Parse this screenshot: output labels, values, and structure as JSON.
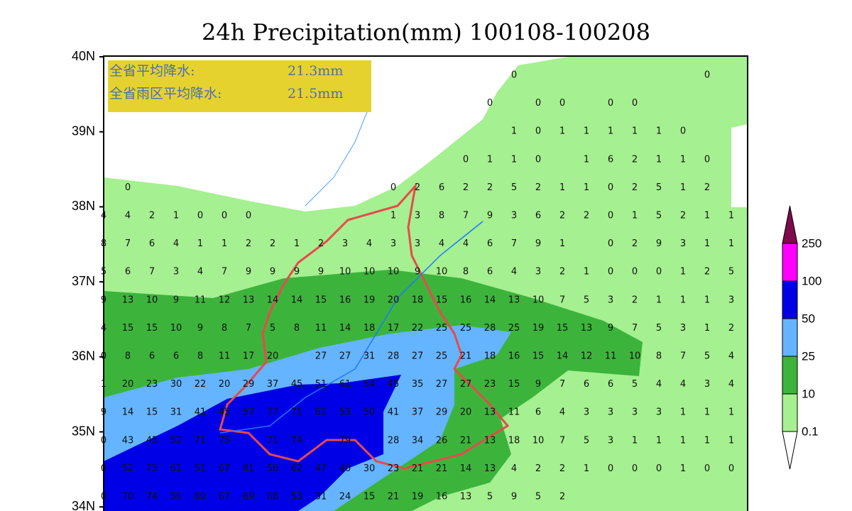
{
  "title": "24h Precipitation(mm) 100108-100208",
  "info_box": {
    "rows": [
      {
        "label": "全省平均降水:",
        "value": "21.3mm"
      },
      {
        "label": "全省雨区平均降水:",
        "value": "21.5mm"
      }
    ]
  },
  "lat_labels": [
    "40N",
    "39N",
    "38N",
    "37N",
    "36N",
    "35N",
    "34N"
  ],
  "colorbar_labels": [
    "250",
    "100",
    "50",
    "25",
    "10",
    "0.1"
  ],
  "grid_values": [
    [
      null,
      null,
      null,
      null,
      null,
      null,
      null,
      null,
      null,
      null,
      null,
      null,
      null,
      null,
      null,
      null,
      null,
      0,
      null,
      null,
      null,
      null,
      null,
      null,
      null,
      0,
      null
    ],
    [
      null,
      null,
      null,
      null,
      null,
      null,
      null,
      null,
      null,
      null,
      null,
      null,
      null,
      null,
      null,
      null,
      0,
      null,
      0,
      0,
      null,
      0,
      0,
      null,
      null,
      null,
      null
    ],
    [
      null,
      null,
      null,
      null,
      null,
      null,
      null,
      null,
      null,
      null,
      null,
      null,
      null,
      null,
      null,
      null,
      null,
      1,
      0,
      1,
      1,
      1,
      1,
      1,
      0,
      null,
      null
    ],
    [
      null,
      null,
      null,
      null,
      null,
      null,
      null,
      null,
      null,
      null,
      null,
      null,
      null,
      null,
      null,
      0,
      1,
      1,
      0,
      null,
      1,
      6,
      2,
      1,
      1,
      0,
      null
    ],
    [
      null,
      0,
      null,
      null,
      null,
      null,
      null,
      null,
      null,
      null,
      null,
      null,
      0,
      2,
      6,
      2,
      2,
      5,
      2,
      1,
      1,
      0,
      2,
      5,
      1,
      2,
      null
    ],
    [
      4,
      4,
      2,
      1,
      0,
      0,
      0,
      null,
      null,
      null,
      null,
      null,
      1,
      3,
      8,
      7,
      9,
      3,
      6,
      2,
      2,
      0,
      1,
      5,
      2,
      1,
      1
    ],
    [
      8,
      7,
      6,
      4,
      1,
      1,
      2,
      2,
      1,
      2,
      3,
      4,
      3,
      3,
      4,
      4,
      6,
      7,
      9,
      1,
      null,
      0,
      2,
      9,
      3,
      1,
      1
    ],
    [
      5,
      6,
      7,
      3,
      4,
      7,
      9,
      9,
      9,
      9,
      10,
      10,
      10,
      9,
      10,
      8,
      6,
      4,
      3,
      2,
      1,
      0,
      0,
      0,
      1,
      2,
      5
    ],
    [
      9,
      13,
      10,
      9,
      11,
      12,
      13,
      14,
      14,
      15,
      16,
      19,
      20,
      18,
      15,
      16,
      14,
      13,
      10,
      7,
      5,
      3,
      2,
      1,
      1,
      1,
      3
    ],
    [
      4,
      15,
      15,
      10,
      9,
      8,
      7,
      5,
      8,
      11,
      14,
      18,
      17,
      22,
      25,
      25,
      28,
      25,
      19,
      15,
      13,
      9,
      7,
      5,
      3,
      1,
      2
    ],
    [
      0,
      8,
      6,
      6,
      8,
      11,
      17,
      20,
      null,
      27,
      27,
      31,
      28,
      27,
      25,
      21,
      18,
      16,
      15,
      14,
      12,
      11,
      10,
      8,
      7,
      5,
      4
    ],
    [
      1,
      20,
      23,
      30,
      22,
      20,
      29,
      37,
      45,
      51,
      61,
      64,
      45,
      35,
      27,
      27,
      23,
      15,
      9,
      7,
      6,
      6,
      5,
      4,
      4,
      3,
      4
    ],
    [
      9,
      14,
      15,
      31,
      41,
      45,
      57,
      77,
      71,
      61,
      53,
      50,
      41,
      37,
      29,
      20,
      13,
      11,
      6,
      4,
      3,
      3,
      3,
      3,
      1,
      1,
      1
    ],
    [
      0,
      43,
      45,
      52,
      71,
      75,
      null,
      71,
      74,
      null,
      79,
      null,
      28,
      34,
      26,
      21,
      13,
      18,
      10,
      7,
      5,
      3,
      1,
      1,
      1,
      1,
      1
    ],
    [
      0,
      52,
      73,
      61,
      51,
      67,
      81,
      56,
      62,
      47,
      40,
      30,
      23,
      21,
      21,
      14,
      13,
      4,
      2,
      2,
      1,
      0,
      0,
      0,
      1,
      0,
      0
    ],
    [
      0,
      70,
      74,
      56,
      80,
      67,
      69,
      68,
      53,
      31,
      24,
      15,
      21,
      19,
      16,
      13,
      5,
      9,
      5,
      2,
      null,
      null,
      null,
      null,
      null,
      null,
      null
    ]
  ]
}
